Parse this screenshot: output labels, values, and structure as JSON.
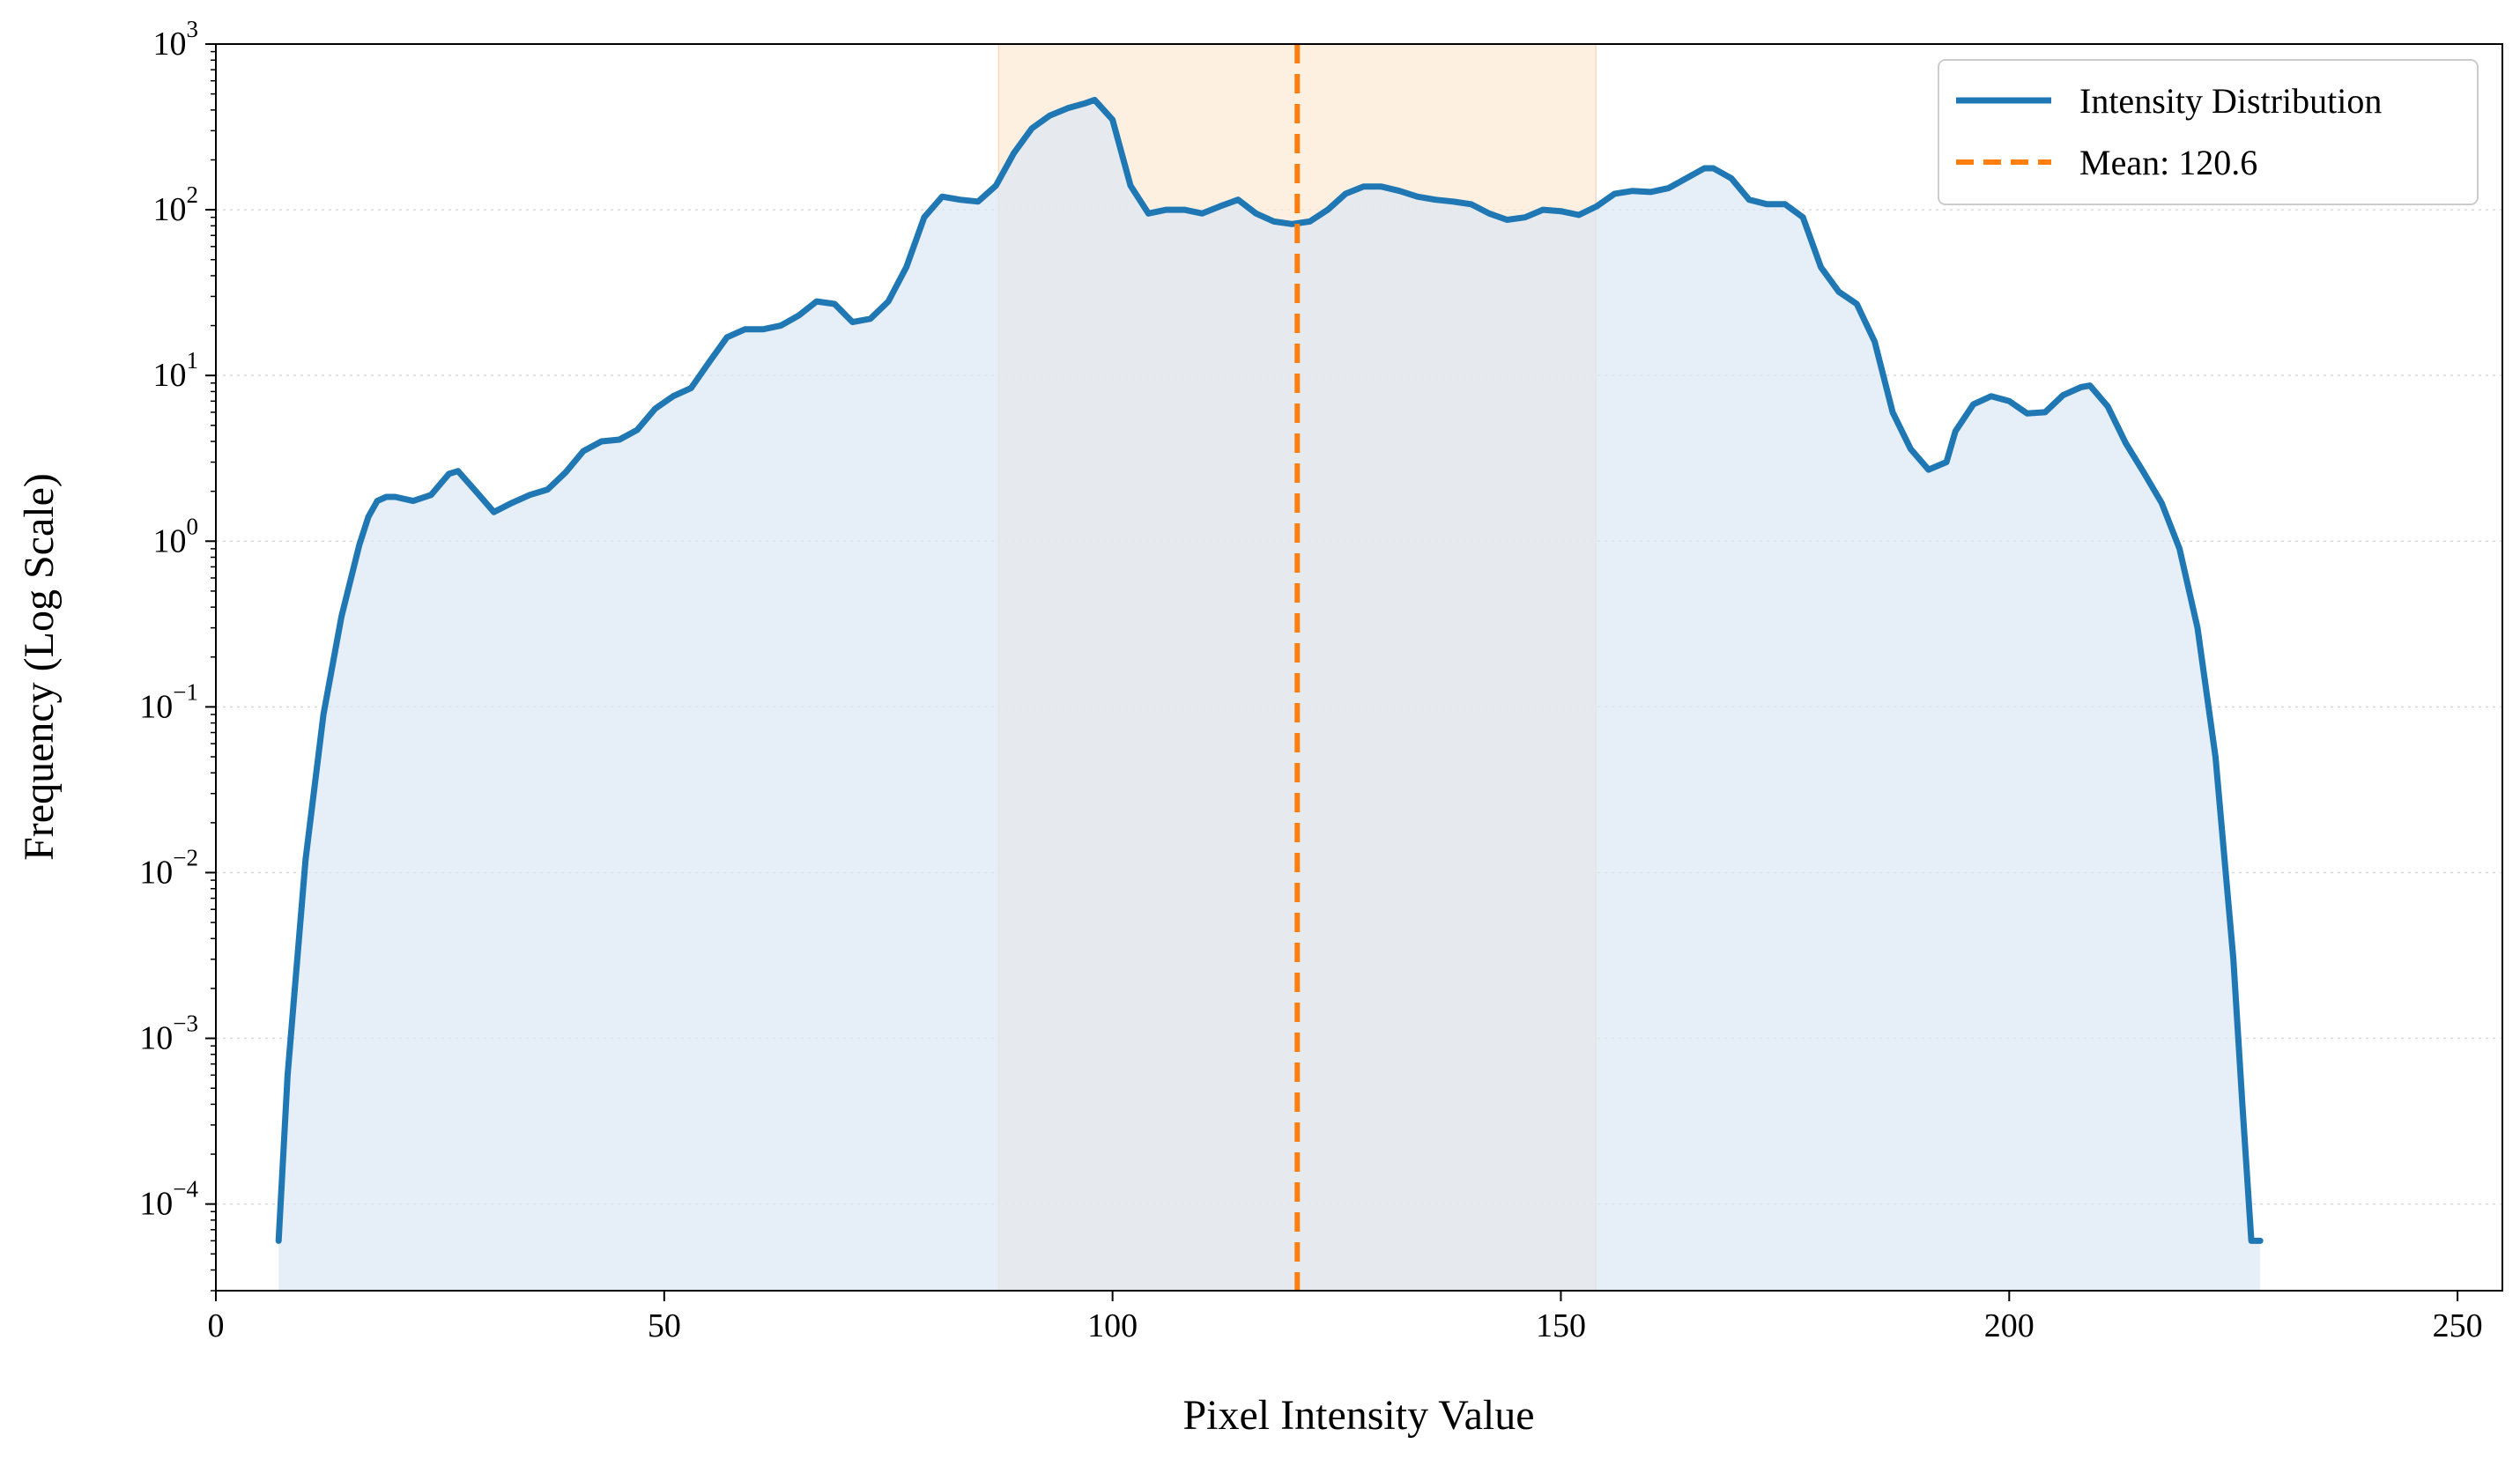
{
  "chart_data": {
    "type": "area",
    "title": "",
    "xlabel": "Pixel Intensity Value",
    "ylabel": "Frequency (Log Scale)",
    "xlim": [
      0,
      255
    ],
    "ylim": [
      3e-05,
      1000
    ],
    "yscale": "log",
    "grid": "horizontal dotted at decades",
    "legend_placement": "top-right",
    "x_ticks": [
      0,
      50,
      100,
      150,
      200,
      250
    ],
    "x_tick_labels": [
      "0",
      "50",
      "100",
      "150",
      "200",
      "250"
    ],
    "y_ticks": [
      0.0001,
      0.001,
      0.01,
      0.1,
      1,
      10,
      100,
      1000
    ],
    "y_tick_labels": [
      {
        "base": "10",
        "exp": "−4"
      },
      {
        "base": "10",
        "exp": "−3"
      },
      {
        "base": "10",
        "exp": "−2"
      },
      {
        "base": "10",
        "exp": "−1"
      },
      {
        "base": "10",
        "exp": "0"
      },
      {
        "base": "10",
        "exp": "1"
      },
      {
        "base": "10",
        "exp": "2"
      },
      {
        "base": "10",
        "exp": "3"
      }
    ],
    "series": [
      {
        "name": "Intensity Distribution",
        "color": "#1f77b4",
        "fill_color": "#dce7f4",
        "x": [
          7,
          8,
          10,
          12,
          14,
          16,
          17,
          18,
          19,
          20,
          22,
          24,
          26,
          27,
          29,
          31,
          33,
          35,
          37,
          39,
          41,
          43,
          45,
          47,
          49,
          51,
          53,
          55,
          57,
          59,
          61,
          63,
          65,
          67,
          69,
          71,
          73,
          75,
          77,
          79,
          81,
          83,
          85,
          87,
          89,
          91,
          93,
          95,
          97,
          98,
          100,
          102,
          104,
          106,
          108,
          110,
          112,
          114,
          116,
          118,
          120,
          122,
          124,
          126,
          128,
          130,
          132,
          134,
          136,
          138,
          140,
          142,
          144,
          146,
          148,
          150,
          152,
          154,
          156,
          158,
          160,
          162,
          164,
          166,
          167,
          169,
          171,
          173,
          175,
          177,
          179,
          181,
          183,
          185,
          187,
          189,
          191,
          193,
          194,
          196,
          198,
          200,
          202,
          204,
          206,
          208,
          209,
          211,
          213,
          215,
          217,
          219,
          221,
          223,
          225,
          226,
          227,
          228
        ],
        "values": [
          6e-05,
          0.0006,
          0.012,
          0.09,
          0.35,
          0.95,
          1.4,
          1.75,
          1.85,
          1.85,
          1.75,
          1.9,
          2.55,
          2.65,
          2.0,
          1.5,
          1.7,
          1.9,
          2.05,
          2.6,
          3.5,
          4.0,
          4.1,
          4.7,
          6.3,
          7.5,
          8.4,
          12,
          17,
          19,
          19,
          20,
          23,
          28,
          27,
          21,
          22,
          28,
          45,
          90,
          120,
          115,
          112,
          140,
          220,
          310,
          370,
          410,
          440,
          460,
          350,
          140,
          95,
          100,
          100,
          95,
          105,
          115,
          95,
          85,
          82,
          85,
          100,
          125,
          138,
          138,
          130,
          120,
          115,
          112,
          108,
          95,
          87,
          90,
          100,
          98,
          93,
          105,
          125,
          130,
          128,
          135,
          155,
          178,
          178,
          155,
          115,
          108,
          108,
          90,
          45,
          32,
          27,
          16,
          6,
          3.6,
          2.7,
          3.0,
          4.6,
          6.7,
          7.5,
          7.0,
          5.9,
          6.0,
          7.6,
          8.5,
          8.7,
          6.5,
          3.9,
          2.6,
          1.7,
          0.9,
          0.3,
          0.05,
          0.003,
          0.0004,
          6e-05,
          6e-05
        ]
      }
    ],
    "reference_line": {
      "name": "Mean: 120.6",
      "x": 120.6,
      "color": "#ff7f0e",
      "style": "dashed"
    },
    "shaded_band": {
      "x_start": 87.3,
      "x_end": 153.9,
      "color": "#fdebd7"
    }
  }
}
